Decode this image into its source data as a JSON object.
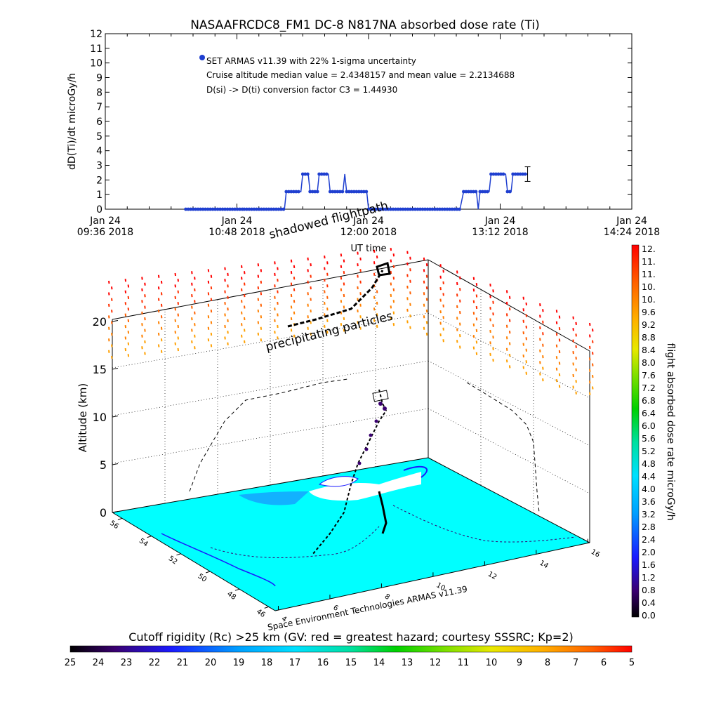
{
  "chart_data": [
    {
      "type": "line",
      "title": "NASAAFRCDC8_FM1 DC-8    N817NA absorbed dose rate (Ti)",
      "ylabel": "dD(Ti)/dt microGy/h",
      "xlabel": "UT time",
      "ylim": [
        0,
        12
      ],
      "y_ticks": [
        "0",
        "1",
        "2",
        "3",
        "4",
        "5",
        "6",
        "7",
        "8",
        "9",
        "10",
        "11",
        "12"
      ],
      "x_ticks": [
        {
          "date": "Jan 24",
          "time": "09:36 2018"
        },
        {
          "date": "Jan 24",
          "time": "10:48 2018"
        },
        {
          "date": "Jan 24",
          "time": "12:00 2018"
        },
        {
          "date": "Jan 24",
          "time": "13:12 2018"
        },
        {
          "date": "Jan 24",
          "time": "14:24 2018"
        }
      ],
      "legend_lines": [
        "SET ARMAS v11.39 with 22% 1-sigma uncertainty",
        "Cruise altitude median value = 2.4348157 and mean value = 2.2134688",
        "D(si) -> D(ti) conversion factor C3 = 1.44930"
      ],
      "series": [
        {
          "color": "#1f3fd0",
          "points": [
            [
              "10:20",
              0
            ],
            [
              "10:52",
              0
            ],
            [
              "11:14",
              0
            ],
            [
              "11:15",
              1.2
            ],
            [
              "11:23",
              1.2
            ],
            [
              "11:24",
              2.4
            ],
            [
              "11:27",
              2.4
            ],
            [
              "11:28",
              1.2
            ],
            [
              "11:32",
              1.2
            ],
            [
              "11:33",
              2.4
            ],
            [
              "11:38",
              2.4
            ],
            [
              "11:39",
              1.2
            ],
            [
              "11:46",
              1.2
            ],
            [
              "11:47",
              2.4
            ],
            [
              "11:48",
              1.2
            ],
            [
              "11:59",
              1.2
            ],
            [
              "12:00",
              0
            ],
            [
              "12:50",
              0
            ],
            [
              "12:52",
              1.2
            ],
            [
              "12:59",
              1.2
            ],
            [
              "13:00",
              0
            ],
            [
              "13:01",
              1.2
            ],
            [
              "13:06",
              1.2
            ],
            [
              "13:07",
              2.4
            ],
            [
              "13:15",
              2.4
            ],
            [
              "13:16",
              1.2
            ],
            [
              "13:18",
              1.2
            ],
            [
              "13:19",
              2.4
            ],
            [
              "13:27",
              2.4
            ]
          ],
          "errorbar": {
            "time": "13:27",
            "value": 2.4,
            "sigma": 0.5
          }
        }
      ]
    },
    {
      "type": "scatter",
      "subtype": "3d-flightpath",
      "zlabel": "Altitude (km)",
      "z_ticks": [
        "0",
        "5",
        "10",
        "15",
        "20"
      ],
      "zlim": [
        0,
        23
      ],
      "lat_ticks": [
        "46",
        "48",
        "50",
        "52",
        "54",
        "56"
      ],
      "lon_ticks": [
        "4",
        "6",
        "8",
        "10",
        "12",
        "14",
        "16"
      ],
      "annotations": [
        "shadowed flightpath",
        "precipitating particles"
      ],
      "credit": "Space Environment Technologies ARMAS v11.39",
      "colorbar": {
        "label": "flight absorbed dose rate microGy/h",
        "ticks": [
          "12.",
          "11.",
          "11.",
          "10.",
          "10.",
          "9.6",
          "9.2",
          "8.8",
          "8.4",
          "8.0",
          "7.6",
          "7.2",
          "6.8",
          "6.4",
          "6.0",
          "5.6",
          "5.2",
          "4.8",
          "4.4",
          "4.0",
          "3.6",
          "3.2",
          "2.8",
          "2.4",
          "2.0",
          "1.6",
          "1.2",
          "0.8",
          "0.4",
          "0.0"
        ]
      },
      "rigidity_bar": {
        "label": "Cutoff rigidity (Rc) >25 km (GV: red = greatest hazard; courtesy SSSRC; Kp=2)",
        "ticks": [
          "25",
          "24",
          "23",
          "22",
          "21",
          "20",
          "19",
          "18",
          "17",
          "16",
          "15",
          "14",
          "13",
          "12",
          "11",
          "10",
          "9",
          "8",
          "7",
          "6",
          "5"
        ]
      }
    }
  ]
}
